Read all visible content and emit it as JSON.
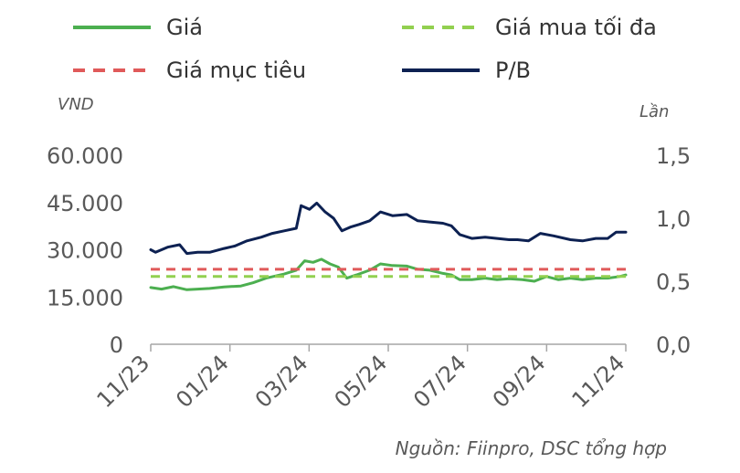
{
  "chart_data": {
    "type": "line",
    "source": "Nguồn: Fiinpro, DSC tổng hợp",
    "legend_position": "top",
    "grid": false,
    "y_left": {
      "label": "VND",
      "lim": [
        0,
        60000
      ],
      "ticks": [
        "0",
        "15.000",
        "30.000",
        "45.000",
        "60.000"
      ]
    },
    "y_right": {
      "label": "Lần",
      "lim": [
        0,
        1.5
      ],
      "ticks": [
        "0,0",
        "0,5",
        "1,0",
        "1,5"
      ]
    },
    "x": {
      "ticks": [
        "11/23",
        "01/24",
        "03/24",
        "05/24",
        "07/24",
        "09/24",
        "11/24"
      ],
      "lim": [
        "2023-11-01",
        "2024-11-30"
      ]
    },
    "series": [
      {
        "name": "Giá",
        "color": "#4caf50",
        "style": "solid",
        "axis": "left",
        "points": [
          [
            "2023-11-01",
            18000
          ],
          [
            "2023-11-10",
            17500
          ],
          [
            "2023-11-20",
            18300
          ],
          [
            "2023-12-01",
            17300
          ],
          [
            "2023-12-10",
            17500
          ],
          [
            "2023-12-20",
            17700
          ],
          [
            "2024-01-01",
            18200
          ],
          [
            "2024-01-15",
            18500
          ],
          [
            "2024-01-25",
            19500
          ],
          [
            "2024-02-05",
            21000
          ],
          [
            "2024-02-20",
            22300
          ],
          [
            "2024-03-01",
            23500
          ],
          [
            "2024-03-08",
            26500
          ],
          [
            "2024-03-15",
            26000
          ],
          [
            "2024-03-22",
            27000
          ],
          [
            "2024-03-29",
            25500
          ],
          [
            "2024-04-05",
            24500
          ],
          [
            "2024-04-12",
            21000
          ],
          [
            "2024-04-20",
            22000
          ],
          [
            "2024-05-01",
            23500
          ],
          [
            "2024-05-10",
            25500
          ],
          [
            "2024-05-20",
            25000
          ],
          [
            "2024-06-01",
            24800
          ],
          [
            "2024-06-10",
            23800
          ],
          [
            "2024-06-20",
            23500
          ],
          [
            "2024-07-01",
            22500
          ],
          [
            "2024-07-08",
            22000
          ],
          [
            "2024-07-15",
            20500
          ],
          [
            "2024-07-25",
            20500
          ],
          [
            "2024-08-05",
            21000
          ],
          [
            "2024-08-15",
            20500
          ],
          [
            "2024-08-25",
            20800
          ],
          [
            "2024-09-05",
            20500
          ],
          [
            "2024-09-15",
            20000
          ],
          [
            "2024-09-25",
            21500
          ],
          [
            "2024-10-05",
            20500
          ],
          [
            "2024-10-15",
            21000
          ],
          [
            "2024-10-25",
            20500
          ],
          [
            "2024-11-05",
            21000
          ],
          [
            "2024-11-15",
            21000
          ],
          [
            "2024-11-25",
            21500
          ],
          [
            "2024-11-30",
            22000
          ]
        ]
      },
      {
        "name": "Giá mua tối đa",
        "color": "#92d050",
        "style": "dashed",
        "axis": "left",
        "points": [
          [
            "2023-11-01",
            21500
          ],
          [
            "2024-11-30",
            21500
          ]
        ]
      },
      {
        "name": "Giá mục tiêu",
        "color": "#e05a5a",
        "style": "dashed",
        "axis": "left",
        "points": [
          [
            "2023-11-01",
            23800
          ],
          [
            "2024-11-30",
            23800
          ]
        ]
      },
      {
        "name": "P/B",
        "color": "#0d2152",
        "style": "solid",
        "axis": "right",
        "points": [
          [
            "2023-11-01",
            0.75
          ],
          [
            "2023-11-05",
            0.73
          ],
          [
            "2023-11-15",
            0.77
          ],
          [
            "2023-11-25",
            0.79
          ],
          [
            "2023-12-01",
            0.72
          ],
          [
            "2023-12-10",
            0.73
          ],
          [
            "2023-12-20",
            0.73
          ],
          [
            "2024-01-01",
            0.76
          ],
          [
            "2024-01-10",
            0.78
          ],
          [
            "2024-01-20",
            0.82
          ],
          [
            "2024-02-01",
            0.85
          ],
          [
            "2024-02-10",
            0.88
          ],
          [
            "2024-02-20",
            0.9
          ],
          [
            "2024-03-01",
            0.92
          ],
          [
            "2024-03-05",
            1.1
          ],
          [
            "2024-03-12",
            1.07
          ],
          [
            "2024-03-18",
            1.12
          ],
          [
            "2024-03-25",
            1.05
          ],
          [
            "2024-04-01",
            1.0
          ],
          [
            "2024-04-08",
            0.9
          ],
          [
            "2024-04-15",
            0.93
          ],
          [
            "2024-04-22",
            0.95
          ],
          [
            "2024-05-01",
            0.98
          ],
          [
            "2024-05-10",
            1.05
          ],
          [
            "2024-05-20",
            1.02
          ],
          [
            "2024-06-01",
            1.03
          ],
          [
            "2024-06-10",
            0.98
          ],
          [
            "2024-06-20",
            0.97
          ],
          [
            "2024-07-01",
            0.96
          ],
          [
            "2024-07-08",
            0.94
          ],
          [
            "2024-07-15",
            0.87
          ],
          [
            "2024-07-25",
            0.84
          ],
          [
            "2024-08-05",
            0.85
          ],
          [
            "2024-08-15",
            0.84
          ],
          [
            "2024-08-25",
            0.83
          ],
          [
            "2024-09-01",
            0.83
          ],
          [
            "2024-09-10",
            0.82
          ],
          [
            "2024-09-20",
            0.88
          ],
          [
            "2024-10-01",
            0.86
          ],
          [
            "2024-10-15",
            0.83
          ],
          [
            "2024-10-25",
            0.82
          ],
          [
            "2024-11-05",
            0.84
          ],
          [
            "2024-11-15",
            0.84
          ],
          [
            "2024-11-22",
            0.89
          ],
          [
            "2024-11-30",
            0.89
          ]
        ]
      }
    ]
  }
}
